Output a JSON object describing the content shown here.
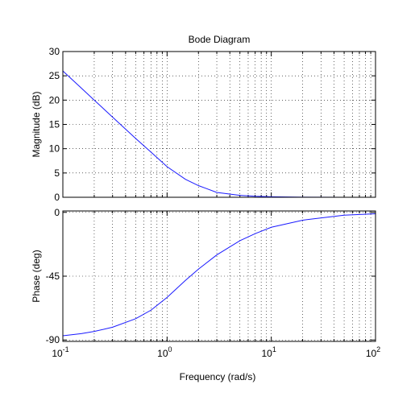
{
  "chart_data": {
    "type": "line",
    "title": "Bode Diagram",
    "xlabel": "Frequency  (rad/s)",
    "xscale": "log",
    "xlim": [
      0.1,
      100
    ],
    "x_ticks": [
      {
        "value": 0.1,
        "base": "10",
        "exp": "-1"
      },
      {
        "value": 1,
        "base": "10",
        "exp": "0"
      },
      {
        "value": 10,
        "base": "10",
        "exp": "1"
      },
      {
        "value": 100,
        "base": "10",
        "exp": "2"
      }
    ],
    "grid": true,
    "panels": [
      {
        "ylabel": "Magnitude (dB)",
        "ylim": [
          0,
          30
        ],
        "yticks": [
          0,
          5,
          10,
          15,
          20,
          25,
          30
        ],
        "ytick_labels": [
          "0",
          "5",
          "10",
          "15",
          "20",
          "25",
          "30"
        ],
        "series": [
          {
            "color": "#1a1aff",
            "x": [
              0.1,
              0.15,
              0.2,
              0.3,
              0.5,
              0.7,
              1,
              1.5,
              2,
              3,
              5,
              7,
              10,
              20,
              50,
              100
            ],
            "y": [
              26.0,
              22.5,
              20.0,
              16.5,
              12.1,
              9.3,
              6.3,
              3.7,
              2.4,
              1.0,
              0.4,
              0.2,
              0.1,
              0.03,
              0.0,
              0.0
            ]
          }
        ]
      },
      {
        "ylabel": "Phase (deg)",
        "ylim": [
          -91,
          1
        ],
        "yticks": [
          -90,
          -45,
          0
        ],
        "ytick_labels": [
          "-90",
          "-45",
          "0"
        ],
        "series": [
          {
            "color": "#1a1aff",
            "x": [
              0.1,
              0.15,
              0.2,
              0.3,
              0.5,
              0.7,
              1,
              1.5,
              2,
              3,
              5,
              7,
              10,
              20,
              50,
              100
            ],
            "y": [
              -87.0,
              -85.5,
              -84.0,
              -81.0,
              -75.0,
              -69.0,
              -60.0,
              -48.0,
              -40.0,
              -30.0,
              -20.0,
              -15.0,
              -10.5,
              -5.5,
              -2.0,
              -1.0
            ]
          }
        ]
      }
    ]
  }
}
